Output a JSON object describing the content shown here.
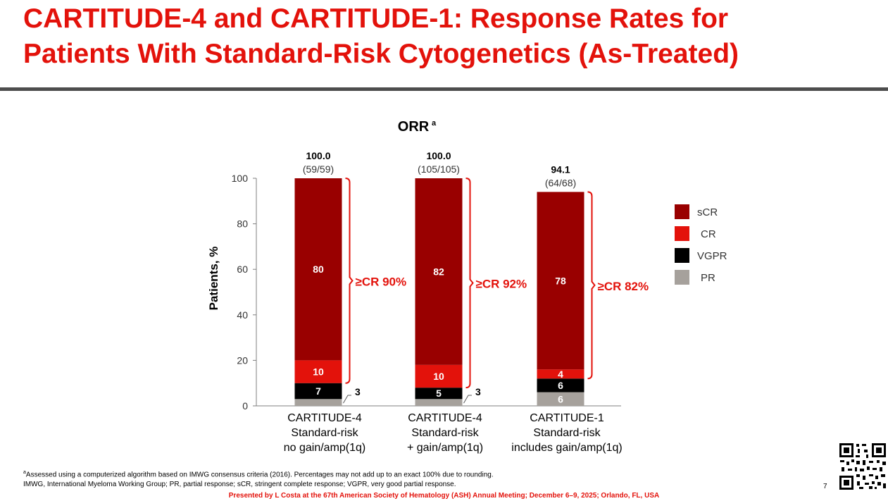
{
  "slide": {
    "title_line1": "CARTITUDE-4 and CARTITUDE-1: Response Rates for",
    "title_line2": "Patients With Standard-Risk Cytogenetics (As-Treated)",
    "footnote_line1": "Assessed using a computerized algorithm based on IMWG consensus criteria (2016). Percentages may not add up to an exact 100% due to rounding.",
    "footnote_marker": "a",
    "footnote_line2": "IMWG, International Myeloma Working Group; PR, partial response; sCR, stringent complete response; VGPR, very good partial response.",
    "presented_by": "Presented by L Costa at the 67th American Society of Hematology (ASH) Annual Meeting; December 6–9, 2025; Orlando, FL, USA",
    "page_number": "7"
  },
  "chart_data": {
    "type": "bar",
    "stacked": true,
    "title": "ORR",
    "title_superscript": "a",
    "ylabel": "Patients, %",
    "ylim": [
      0,
      100
    ],
    "yticks": [
      0,
      20,
      40,
      60,
      80,
      100
    ],
    "categories": [
      [
        "CARTITUDE-4",
        "Standard-risk",
        "no gain/amp(1q)"
      ],
      [
        "CARTITUDE-4",
        "Standard-risk",
        "+ gain/amp(1q)"
      ],
      [
        "CARTITUDE-1",
        "Standard-risk",
        "includes gain/amp(1q)"
      ]
    ],
    "series": [
      {
        "name": "PR",
        "color": "#a6a19c",
        "values": [
          3,
          3,
          6
        ],
        "labels": [
          "3",
          "3",
          "6"
        ]
      },
      {
        "name": "VGPR",
        "color": "#000000",
        "values": [
          7,
          5,
          6
        ],
        "labels": [
          "7",
          "5",
          "6"
        ]
      },
      {
        "name": "CR",
        "color": "#e3120b",
        "values": [
          10,
          10,
          4
        ],
        "labels": [
          "10",
          "10",
          "4"
        ]
      },
      {
        "name": "sCR",
        "color": "#990000",
        "values": [
          80,
          82,
          78
        ],
        "labels": [
          "80",
          "82",
          "78"
        ]
      }
    ],
    "totals": [
      {
        "value": "100.0",
        "fraction": "(59/59)"
      },
      {
        "value": "100.0",
        "fraction": "(105/105)"
      },
      {
        "value": "94.1",
        "fraction": "(64/68)"
      }
    ],
    "cr_brackets": [
      "≥CR 90%",
      "≥CR 92%",
      "≥CR 82%"
    ],
    "legend": [
      "sCR",
      "CR",
      "VGPR",
      "PR"
    ],
    "legend_position": "right"
  }
}
